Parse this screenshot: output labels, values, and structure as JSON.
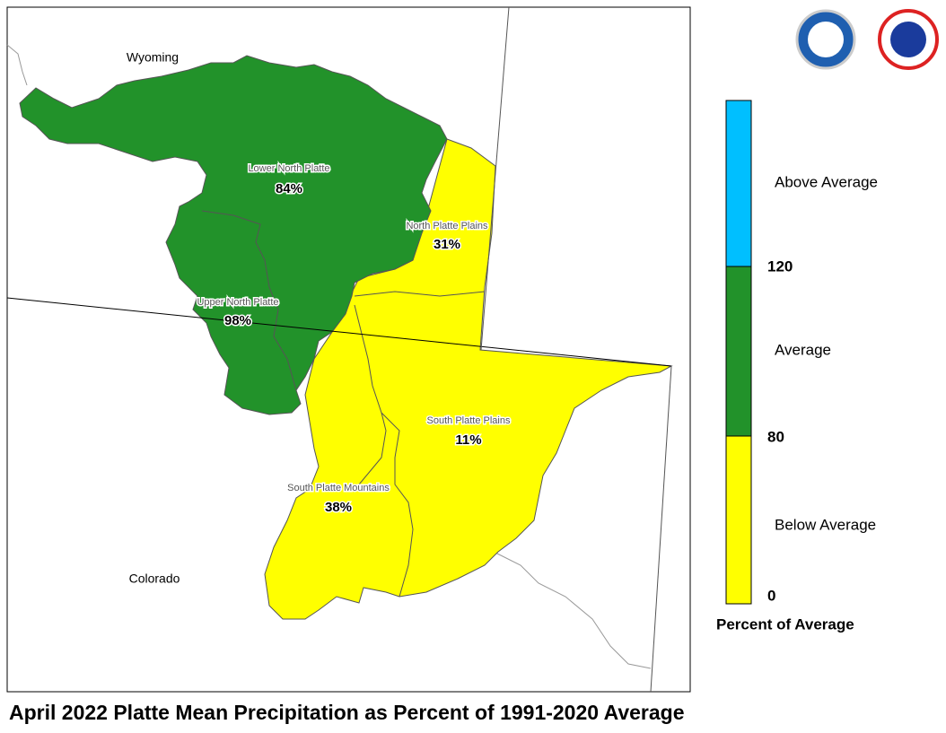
{
  "map": {
    "title": "April 2022 Platte Mean Precipitation as Percent of 1991-2020 Average",
    "states": [
      "Wyoming",
      "Colorado"
    ],
    "regions": [
      {
        "name": "Lower North Platte",
        "value": "84%"
      },
      {
        "name": "North Platte Plains",
        "value": "31%"
      },
      {
        "name": "Upper North Platte",
        "value": "98%"
      },
      {
        "name": "South Platte Plains",
        "value": "11%"
      },
      {
        "name": "South Platte Mountains",
        "value": "38%"
      }
    ],
    "legend": {
      "categories": [
        "Above Average",
        "Average",
        "Below Average"
      ],
      "ticks": [
        "120",
        "80",
        "0"
      ],
      "title": "Percent of Average"
    }
  }
}
